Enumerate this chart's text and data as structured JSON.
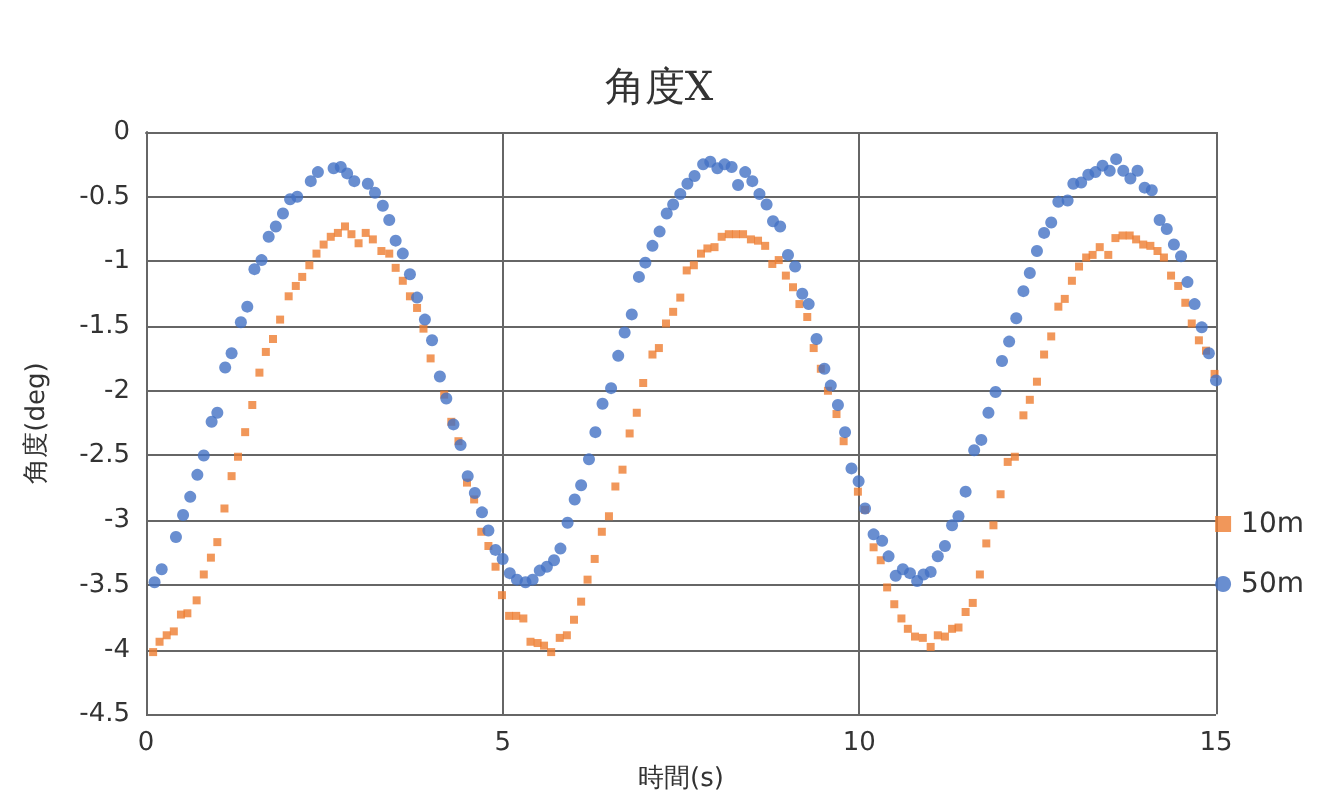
{
  "chart_data": {
    "type": "scatter",
    "title": "角度X",
    "xlabel": "時間(s)",
    "ylabel": "角度(deg)",
    "xlim": [
      0,
      15
    ],
    "xticks": [
      0,
      5,
      10,
      15
    ],
    "ylim": [
      -4.5,
      0
    ],
    "yticks": [
      -4.5,
      -4,
      -3.5,
      -3,
      -2.5,
      -2,
      -1.5,
      -1,
      -0.5,
      0
    ],
    "grid": true,
    "legend": "right",
    "series": [
      {
        "name": "10m",
        "color": "#ed7d31",
        "marker": "square",
        "x": [
          0.1,
          0.19,
          0.29,
          0.39,
          0.49,
          0.58,
          0.71,
          0.81,
          0.91,
          1.0,
          1.1,
          1.2,
          1.29,
          1.39,
          1.49,
          1.59,
          1.68,
          1.78,
          1.88,
          2.0,
          2.1,
          2.19,
          2.29,
          2.39,
          2.49,
          2.59,
          2.69,
          2.79,
          2.88,
          2.98,
          3.08,
          3.18,
          3.3,
          3.41,
          3.5,
          3.6,
          3.7,
          3.8,
          3.89,
          3.99,
          4.18,
          4.28,
          4.38,
          4.5,
          4.6,
          4.7,
          4.8,
          4.9,
          4.99,
          5.09,
          5.19,
          5.29,
          5.39,
          5.49,
          5.58,
          5.68,
          5.8,
          5.9,
          6.0,
          6.1,
          6.19,
          6.29,
          6.39,
          6.49,
          6.58,
          6.68,
          6.78,
          6.88,
          6.97,
          7.1,
          7.19,
          7.29,
          7.39,
          7.49,
          7.58,
          7.68,
          7.78,
          7.87,
          7.97,
          8.07,
          8.17,
          8.27,
          8.37,
          8.48,
          8.58,
          8.68,
          8.78,
          8.87,
          8.97,
          9.07,
          9.16,
          9.27,
          9.36,
          9.46,
          9.56,
          9.68,
          9.78,
          9.98,
          10.08,
          10.2,
          10.3,
          10.39,
          10.49,
          10.59,
          10.68,
          10.78,
          10.89,
          11.0,
          11.1,
          11.2,
          11.3,
          11.39,
          11.49,
          11.59,
          11.69,
          11.78,
          11.88,
          11.98,
          12.08,
          12.18,
          12.3,
          12.39,
          12.49,
          12.59,
          12.69,
          12.79,
          12.88,
          12.98,
          13.08,
          13.18,
          13.27,
          13.37,
          13.49,
          13.59,
          13.69,
          13.79,
          13.88,
          13.98,
          14.08,
          14.18,
          14.27,
          14.37,
          14.47,
          14.57,
          14.66,
          14.76,
          14.86,
          14.98
        ],
        "values": [
          -4.02,
          -3.94,
          -3.89,
          -3.86,
          -3.73,
          -3.72,
          -3.62,
          -3.42,
          -3.29,
          -3.17,
          -2.91,
          -2.66,
          -2.51,
          -2.32,
          -2.11,
          -1.86,
          -1.7,
          -1.6,
          -1.45,
          -1.27,
          -1.19,
          -1.12,
          -1.03,
          -0.94,
          -0.87,
          -0.81,
          -0.78,
          -0.73,
          -0.79,
          -0.86,
          -0.78,
          -0.83,
          -0.92,
          -0.94,
          -1.05,
          -1.15,
          -1.27,
          -1.36,
          -1.52,
          -1.75,
          -2.03,
          -2.24,
          -2.39,
          -2.71,
          -2.84,
          -3.09,
          -3.2,
          -3.36,
          -3.58,
          -3.74,
          -3.74,
          -3.76,
          -3.94,
          -3.95,
          -3.97,
          -4.02,
          -3.91,
          -3.89,
          -3.77,
          -3.63,
          -3.46,
          -3.3,
          -3.09,
          -2.97,
          -2.74,
          -2.61,
          -2.33,
          -2.17,
          -1.94,
          -1.72,
          -1.67,
          -1.48,
          -1.39,
          -1.28,
          -1.07,
          -1.03,
          -0.94,
          -0.9,
          -0.89,
          -0.81,
          -0.79,
          -0.79,
          -0.79,
          -0.83,
          -0.84,
          -0.88,
          -1.02,
          -0.99,
          -1.11,
          -1.2,
          -1.33,
          -1.43,
          -1.67,
          -1.83,
          -2.0,
          -2.18,
          -2.39,
          -2.78,
          -2.92,
          -3.21,
          -3.31,
          -3.52,
          -3.65,
          -3.76,
          -3.84,
          -3.9,
          -3.91,
          -3.98,
          -3.89,
          -3.9,
          -3.84,
          -3.83,
          -3.71,
          -3.64,
          -3.42,
          -3.18,
          -3.04,
          -2.8,
          -2.55,
          -2.51,
          -2.19,
          -2.07,
          -1.93,
          -1.72,
          -1.58,
          -1.35,
          -1.29,
          -1.15,
          -1.04,
          -0.97,
          -0.95,
          -0.89,
          -0.95,
          -0.82,
          -0.8,
          -0.8,
          -0.83,
          -0.87,
          -0.88,
          -0.92,
          -0.97,
          -1.11,
          -1.19,
          -1.32,
          -1.48,
          -1.61,
          -1.69,
          -1.87
        ]
      },
      {
        "name": "50m",
        "color": "#4472c4",
        "marker": "circle",
        "x": [
          0.12,
          0.22,
          0.42,
          0.52,
          0.62,
          0.72,
          0.81,
          0.92,
          1.0,
          1.11,
          1.2,
          1.33,
          1.42,
          1.52,
          1.62,
          1.72,
          1.82,
          1.92,
          2.02,
          2.12,
          2.31,
          2.41,
          2.63,
          2.73,
          2.82,
          2.92,
          3.11,
          3.21,
          3.32,
          3.41,
          3.5,
          3.6,
          3.7,
          3.8,
          3.91,
          4.01,
          4.12,
          4.21,
          4.31,
          4.41,
          4.51,
          4.61,
          4.71,
          4.8,
          4.9,
          5.0,
          5.1,
          5.2,
          5.32,
          5.42,
          5.52,
          5.62,
          5.72,
          5.81,
          5.91,
          6.01,
          6.1,
          6.21,
          6.3,
          6.4,
          6.52,
          6.62,
          6.71,
          6.81,
          6.91,
          7.0,
          7.1,
          7.2,
          7.3,
          7.39,
          7.49,
          7.59,
          7.69,
          7.81,
          7.91,
          8.01,
          8.11,
          8.21,
          8.3,
          8.4,
          8.5,
          8.6,
          8.7,
          8.79,
          8.89,
          9.0,
          9.1,
          9.2,
          9.29,
          9.4,
          9.51,
          9.6,
          9.7,
          9.8,
          9.89,
          9.99,
          10.08,
          10.2,
          10.32,
          10.41,
          10.51,
          10.61,
          10.71,
          10.81,
          10.9,
          11.0,
          11.1,
          11.2,
          11.3,
          11.39,
          11.49,
          11.61,
          11.71,
          11.81,
          11.91,
          12.0,
          12.1,
          12.2,
          12.3,
          12.39,
          12.49,
          12.59,
          12.69,
          12.79,
          12.92,
          13.0,
          13.11,
          13.21,
          13.31,
          13.41,
          13.51,
          13.6,
          13.7,
          13.8,
          13.9,
          14.0,
          14.1,
          14.21,
          14.31,
          14.41,
          14.51,
          14.6,
          14.7,
          14.8,
          14.9,
          15.0
        ],
        "values": [
          -3.48,
          -3.38,
          -3.13,
          -2.96,
          -2.82,
          -2.65,
          -2.5,
          -2.24,
          -2.17,
          -1.82,
          -1.71,
          -1.47,
          -1.35,
          -1.06,
          -0.99,
          -0.81,
          -0.73,
          -0.63,
          -0.52,
          -0.5,
          -0.38,
          -0.31,
          -0.28,
          -0.27,
          -0.32,
          -0.38,
          -0.4,
          -0.47,
          -0.57,
          -0.68,
          -0.84,
          -0.94,
          -1.1,
          -1.28,
          -1.45,
          -1.61,
          -1.89,
          -2.06,
          -2.26,
          -2.42,
          -2.66,
          -2.79,
          -2.94,
          -3.08,
          -3.23,
          -3.3,
          -3.41,
          -3.46,
          -3.48,
          -3.46,
          -3.39,
          -3.36,
          -3.31,
          -3.22,
          -3.02,
          -2.84,
          -2.73,
          -2.53,
          -2.32,
          -2.1,
          -1.98,
          -1.73,
          -1.55,
          -1.41,
          -1.12,
          -1.01,
          -0.88,
          -0.77,
          -0.63,
          -0.56,
          -0.48,
          -0.4,
          -0.34,
          -0.25,
          -0.23,
          -0.28,
          -0.25,
          -0.27,
          -0.41,
          -0.31,
          -0.38,
          -0.48,
          -0.56,
          -0.69,
          -0.73,
          -0.95,
          -1.04,
          -1.25,
          -1.33,
          -1.6,
          -1.83,
          -1.96,
          -2.11,
          -2.32,
          -2.6,
          -2.7,
          -2.91,
          -3.11,
          -3.16,
          -3.28,
          -3.43,
          -3.38,
          -3.41,
          -3.47,
          -3.42,
          -3.4,
          -3.28,
          -3.2,
          -3.04,
          -2.97,
          -2.78,
          -2.46,
          -2.38,
          -2.17,
          -2.01,
          -1.77,
          -1.62,
          -1.44,
          -1.23,
          -1.09,
          -0.92,
          -0.78,
          -0.7,
          -0.54,
          -0.53,
          -0.4,
          -0.39,
          -0.33,
          -0.31,
          -0.26,
          -0.3,
          -0.21,
          -0.3,
          -0.36,
          -0.3,
          -0.43,
          -0.45,
          -0.68,
          -0.75,
          -0.87,
          -0.96,
          -1.16,
          -1.33,
          -1.51,
          -1.71,
          -1.92
        ]
      }
    ]
  }
}
